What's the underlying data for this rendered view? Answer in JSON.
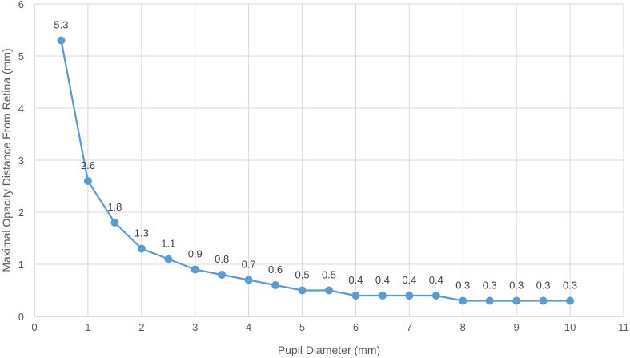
{
  "chart_data": {
    "type": "line",
    "title": "",
    "xlabel": "Pupil Diameter (mm)",
    "ylabel": "Maximal Opacity Distance From Retina (mm)",
    "xlim": [
      0,
      11
    ],
    "ylim": [
      0,
      6
    ],
    "xticks": [
      0,
      1,
      2,
      3,
      4,
      5,
      6,
      7,
      8,
      9,
      10,
      11
    ],
    "yticks": [
      0,
      1,
      2,
      3,
      4,
      5,
      6
    ],
    "grid": true,
    "legend": "none",
    "series": [
      {
        "color": "#5b9bd5",
        "x": [
          0.5,
          1,
          1.5,
          2,
          2.5,
          3,
          3.5,
          4,
          4.5,
          5,
          5.5,
          6,
          6.5,
          7,
          7.5,
          8,
          8.5,
          9,
          9.5,
          10
        ],
        "y": [
          5.3,
          2.6,
          1.8,
          1.3,
          1.1,
          0.9,
          0.8,
          0.7,
          0.6,
          0.5,
          0.5,
          0.4,
          0.4,
          0.4,
          0.4,
          0.3,
          0.3,
          0.3,
          0.3,
          0.3
        ],
        "labels": [
          "5.3",
          "2.6",
          "1.8",
          "1.3",
          "1.1",
          "0.9",
          "0.8",
          "0.7",
          "0.6",
          "0.5",
          "0.5",
          "0.4",
          "0.4",
          "0.4",
          "0.4",
          "0.3",
          "0.3",
          "0.3",
          "0.3",
          "0.3"
        ]
      }
    ]
  }
}
